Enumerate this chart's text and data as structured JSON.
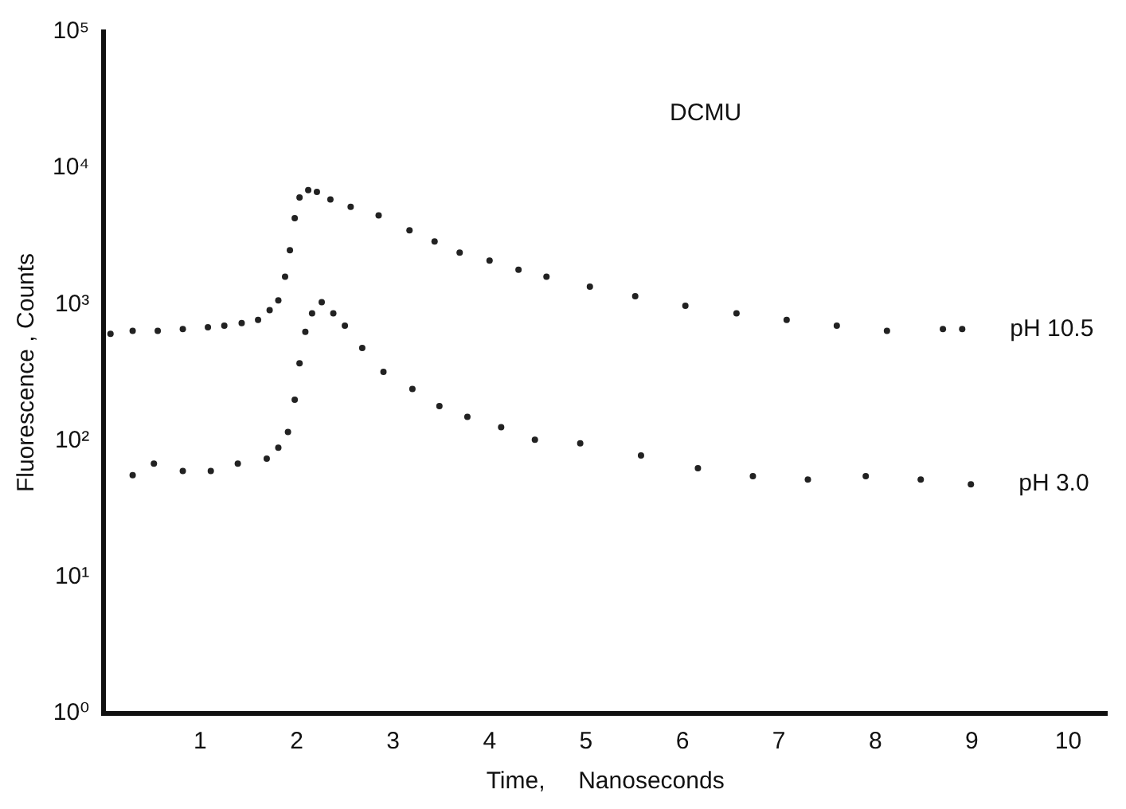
{
  "chart_data": {
    "type": "scatter",
    "xlabel": "Time,     Nanoseconds",
    "ylabel": "Fluorescence , Counts",
    "annotations": [
      "DCMU"
    ],
    "xlim": [
      0,
      10.4
    ],
    "xticks": [
      1,
      2,
      3,
      4,
      5,
      6,
      7,
      8,
      9,
      10
    ],
    "ylim": [
      1,
      100000
    ],
    "yticks": [
      {
        "value": 1,
        "label": "10⁰"
      },
      {
        "value": 10,
        "label": "10¹"
      },
      {
        "value": 100,
        "label": "10²"
      },
      {
        "value": 1000,
        "label": "10³"
      },
      {
        "value": 10000,
        "label": "10⁴"
      },
      {
        "value": 100000,
        "label": "10⁵"
      }
    ],
    "log": "y",
    "grid": false,
    "legend": false,
    "marker": "circle",
    "series": [
      {
        "name": "pH 10.5",
        "color": "#222222",
        "x": [
          0.07,
          0.3,
          0.56,
          0.82,
          1.08,
          1.25,
          1.43,
          1.6,
          1.72,
          1.81,
          1.88,
          1.93,
          1.98,
          2.03,
          2.12,
          2.21,
          2.35,
          2.56,
          2.85,
          3.17,
          3.43,
          3.69,
          4.0,
          4.3,
          4.59,
          5.04,
          5.51,
          6.03,
          6.56,
          7.08,
          7.6,
          8.12,
          8.7,
          8.9
        ],
        "values": [
          610,
          640,
          640,
          660,
          680,
          700,
          730,
          770,
          910,
          1070,
          1600,
          2500,
          4300,
          6100,
          6900,
          6700,
          5900,
          5200,
          4500,
          3500,
          2900,
          2400,
          2100,
          1800,
          1600,
          1350,
          1150,
          980,
          860,
          770,
          700,
          640,
          660,
          660
        ]
      },
      {
        "name": "pH 3.0",
        "color": "#222222",
        "x": [
          0.3,
          0.52,
          0.82,
          1.11,
          1.39,
          1.69,
          1.81,
          1.91,
          1.98,
          2.03,
          2.09,
          2.16,
          2.26,
          2.38,
          2.5,
          2.68,
          2.9,
          3.2,
          3.48,
          3.77,
          4.12,
          4.47,
          4.94,
          5.57,
          6.16,
          6.73,
          7.3,
          7.9,
          8.47,
          8.99
        ],
        "values": [
          56,
          68,
          60,
          60,
          68,
          74,
          89,
          116,
          200,
          370,
          630,
          860,
          1040,
          860,
          700,
          480,
          320,
          240,
          180,
          150,
          126,
          102,
          96,
          78,
          63,
          55,
          52,
          55,
          52,
          48
        ]
      }
    ]
  }
}
